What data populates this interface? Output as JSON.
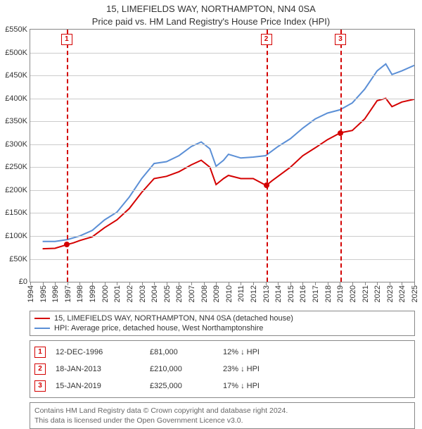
{
  "title_line1": "15, LIMEFIELDS WAY, NORTHAMPTON, NN4 0SA",
  "title_line2": "Price paid vs. HM Land Registry's House Price Index (HPI)",
  "chart": {
    "type": "line",
    "background_color": "#ffffff",
    "grid_color": "#cccccc",
    "axis_color": "#888888",
    "y": {
      "min": 0,
      "max": 550000,
      "step": 50000,
      "prefix": "£",
      "suffix_k": true
    },
    "x": {
      "min": 1994,
      "max": 2025,
      "step": 1
    },
    "series": [
      {
        "id": "price_paid",
        "label": "15, LIMEFIELDS WAY, NORTHAMPTON, NN4 0SA (detached house)",
        "color": "#d40000",
        "width": 2,
        "points": [
          [
            1995.0,
            72000
          ],
          [
            1996.0,
            73000
          ],
          [
            1996.95,
            81000
          ],
          [
            1997.5,
            85000
          ],
          [
            1998.0,
            90000
          ],
          [
            1999.0,
            98000
          ],
          [
            2000.0,
            118000
          ],
          [
            2001.0,
            135000
          ],
          [
            2002.0,
            160000
          ],
          [
            2003.0,
            195000
          ],
          [
            2004.0,
            225000
          ],
          [
            2005.0,
            230000
          ],
          [
            2006.0,
            240000
          ],
          [
            2007.0,
            255000
          ],
          [
            2007.8,
            265000
          ],
          [
            2008.5,
            250000
          ],
          [
            2009.0,
            212000
          ],
          [
            2009.6,
            225000
          ],
          [
            2010.0,
            232000
          ],
          [
            2011.0,
            225000
          ],
          [
            2012.0,
            225000
          ],
          [
            2013.05,
            210000
          ],
          [
            2013.5,
            220000
          ],
          [
            2014.0,
            230000
          ],
          [
            2015.0,
            250000
          ],
          [
            2016.0,
            275000
          ],
          [
            2017.0,
            292000
          ],
          [
            2018.0,
            310000
          ],
          [
            2019.04,
            325000
          ],
          [
            2020.0,
            330000
          ],
          [
            2021.0,
            355000
          ],
          [
            2022.0,
            395000
          ],
          [
            2022.7,
            400000
          ],
          [
            2023.2,
            382000
          ],
          [
            2024.0,
            392000
          ],
          [
            2025.0,
            398000
          ]
        ]
      },
      {
        "id": "hpi",
        "label": "HPI: Average price, detached house, West Northamptonshire",
        "color": "#5b8fd6",
        "width": 2,
        "points": [
          [
            1995.0,
            88000
          ],
          [
            1996.0,
            88000
          ],
          [
            1997.0,
            92000
          ],
          [
            1998.0,
            100000
          ],
          [
            1999.0,
            112000
          ],
          [
            2000.0,
            135000
          ],
          [
            2001.0,
            152000
          ],
          [
            2002.0,
            185000
          ],
          [
            2003.0,
            225000
          ],
          [
            2004.0,
            258000
          ],
          [
            2005.0,
            262000
          ],
          [
            2006.0,
            275000
          ],
          [
            2007.0,
            295000
          ],
          [
            2007.8,
            305000
          ],
          [
            2008.5,
            290000
          ],
          [
            2009.0,
            252000
          ],
          [
            2009.6,
            265000
          ],
          [
            2010.0,
            278000
          ],
          [
            2011.0,
            270000
          ],
          [
            2012.0,
            272000
          ],
          [
            2013.0,
            275000
          ],
          [
            2014.0,
            295000
          ],
          [
            2015.0,
            312000
          ],
          [
            2016.0,
            335000
          ],
          [
            2017.0,
            355000
          ],
          [
            2018.0,
            368000
          ],
          [
            2019.0,
            375000
          ],
          [
            2020.0,
            390000
          ],
          [
            2021.0,
            420000
          ],
          [
            2022.0,
            460000
          ],
          [
            2022.7,
            475000
          ],
          [
            2023.2,
            452000
          ],
          [
            2024.0,
            460000
          ],
          [
            2025.0,
            472000
          ]
        ]
      }
    ],
    "sales": [
      {
        "num": "1",
        "year": 1996.95,
        "price": 81000,
        "color": "#d40000"
      },
      {
        "num": "2",
        "year": 2013.05,
        "price": 210000,
        "color": "#d40000"
      },
      {
        "num": "3",
        "year": 2019.04,
        "price": 325000,
        "color": "#d40000"
      }
    ],
    "marker_line_color": "#d40000",
    "marker_box_color": "#d40000"
  },
  "transactions": [
    {
      "num": "1",
      "date": "12-DEC-1996",
      "price": "£81,000",
      "delta": "12% ↓ HPI"
    },
    {
      "num": "2",
      "date": "18-JAN-2013",
      "price": "£210,000",
      "delta": "23% ↓ HPI"
    },
    {
      "num": "3",
      "date": "15-JAN-2019",
      "price": "£325,000",
      "delta": "17% ↓ HPI"
    }
  ],
  "footer_line1": "Contains HM Land Registry data © Crown copyright and database right 2024.",
  "footer_line2": "This data is licensed under the Open Government Licence v3.0."
}
